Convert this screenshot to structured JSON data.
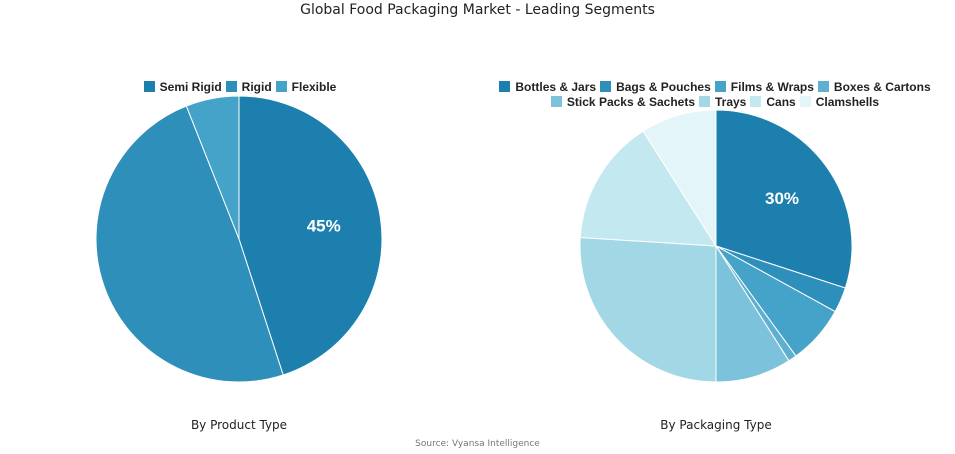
{
  "chart_data": [
    {
      "type": "pie",
      "subtitle": "By Product Type",
      "legend_position": "top",
      "categories": [
        "Semi Rigid",
        "Rigid",
        "Flexible"
      ],
      "values": [
        45,
        49,
        6
      ],
      "colors": [
        "#1d7fae",
        "#2e8fba",
        "#45a2c8"
      ],
      "data_labels": [
        "45%",
        "",
        ""
      ]
    },
    {
      "type": "pie",
      "subtitle": "By Packaging Type",
      "legend_position": "top",
      "categories": [
        "Bottles & Jars",
        "Bags & Pouches",
        "Films & Wraps",
        "Boxes & Cartons",
        "Stick Packs & Sachets",
        "Trays",
        "Cans",
        "Clamshells"
      ],
      "values": [
        30,
        3,
        7,
        1,
        9,
        26,
        15,
        9
      ],
      "colors": [
        "#1d7fae",
        "#2e8fba",
        "#45a2c8",
        "#5fb0d0",
        "#7cc2da",
        "#a2d8e6",
        "#c4e8ef",
        "#e3f5f8"
      ],
      "data_labels": [
        "30%",
        "",
        "",
        "",
        "",
        "",
        "",
        ""
      ]
    }
  ],
  "title": "Global Food Packaging Market - Leading Segments",
  "source": "Source: Vyansa Intelligence"
}
